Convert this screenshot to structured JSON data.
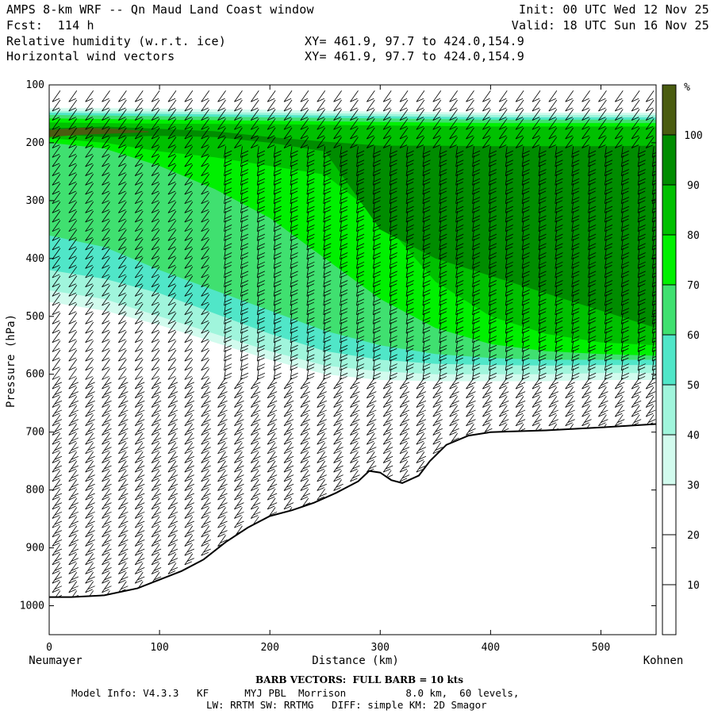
{
  "header": {
    "title": "AMPS 8-km WRF -- Qn Maud Land Coast window",
    "fcst": "Fcst:  114 h",
    "field1": "Relative humidity (w.r.t. ice)",
    "field2": "Horizontal wind vectors",
    "xy1": "XY= 461.9, 97.7 to 424.0,154.9",
    "xy2": "XY= 461.9, 97.7 to 424.0,154.9",
    "init": "Init: 00 UTC Wed 12 Nov 25",
    "valid": "Valid: 18 UTC Sun 16 Nov 25"
  },
  "footer": {
    "barb_note": "BARB VECTORS:  FULL BARB = 10 kts",
    "model_info": "Model Info: V4.3.3   KF      MYJ PBL  Morrison          8.0 km,  60 levels,",
    "model_info2": "LW: RRTM SW: RRTMG   DIFF: simple KM: 2D Smagor"
  },
  "colors": {
    "rh_levels": [
      "#ffffff",
      "#ffffff",
      "#ffffff",
      "#d2fbee",
      "#a0f5dc",
      "#50e6c8",
      "#40e070",
      "#00f000",
      "#00c000",
      "#008c00",
      "#4a5c10"
    ],
    "terrain_line": "#000000"
  },
  "chart_data": {
    "type": "cross-section",
    "title": "Relative humidity (w.r.t. ice) and horizontal wind vectors",
    "xlabel": "Distance (km)",
    "ylabel": "Pressure (hPa)",
    "xlim": [
      0,
      550
    ],
    "ylim": [
      1050,
      100
    ],
    "x_ticks": [
      0,
      100,
      200,
      300,
      400,
      500
    ],
    "y_ticks": [
      100,
      200,
      300,
      400,
      500,
      600,
      700,
      800,
      900,
      1000
    ],
    "left_endpoint": "Neumayer",
    "right_endpoint": "Kohnen",
    "colorbar": {
      "unit": "%",
      "ticks": [
        10,
        20,
        30,
        40,
        50,
        60,
        70,
        80,
        90,
        100
      ],
      "levels": [
        0,
        10,
        20,
        30,
        40,
        50,
        60,
        70,
        80,
        90,
        100,
        110
      ]
    },
    "terrain_surface_hpa": [
      [
        0,
        985
      ],
      [
        20,
        985
      ],
      [
        50,
        982
      ],
      [
        80,
        970
      ],
      [
        100,
        955
      ],
      [
        120,
        940
      ],
      [
        140,
        920
      ],
      [
        160,
        890
      ],
      [
        180,
        865
      ],
      [
        200,
        845
      ],
      [
        220,
        835
      ],
      [
        240,
        822
      ],
      [
        260,
        805
      ],
      [
        280,
        785
      ],
      [
        290,
        767
      ],
      [
        300,
        770
      ],
      [
        310,
        783
      ],
      [
        320,
        788
      ],
      [
        335,
        775
      ],
      [
        345,
        750
      ],
      [
        360,
        722
      ],
      [
        380,
        706
      ],
      [
        400,
        700
      ],
      [
        450,
        697
      ],
      [
        500,
        692
      ],
      [
        550,
        686
      ]
    ],
    "rh_contours": [
      {
        "level": 30,
        "top": [
          [
            0,
            140
          ],
          [
            50,
            140
          ],
          [
            100,
            141
          ],
          [
            200,
            143
          ],
          [
            300,
            146
          ],
          [
            400,
            148
          ],
          [
            550,
            148
          ]
        ],
        "bottom": [
          [
            0,
            475
          ],
          [
            50,
            490
          ],
          [
            100,
            515
          ],
          [
            150,
            545
          ],
          [
            200,
            575
          ],
          [
            250,
            600
          ],
          [
            300,
            610
          ],
          [
            350,
            612
          ],
          [
            400,
            612
          ],
          [
            450,
            612
          ],
          [
            500,
            610
          ],
          [
            550,
            610
          ]
        ]
      },
      {
        "level": 40,
        "top": [
          [
            0,
            145
          ],
          [
            100,
            146
          ],
          [
            200,
            148
          ],
          [
            300,
            150
          ],
          [
            400,
            152
          ],
          [
            550,
            152
          ]
        ],
        "bottom": [
          [
            0,
            455
          ],
          [
            50,
            470
          ],
          [
            100,
            500
          ],
          [
            150,
            530
          ],
          [
            200,
            560
          ],
          [
            250,
            585
          ],
          [
            300,
            595
          ],
          [
            350,
            600
          ],
          [
            400,
            600
          ],
          [
            450,
            600
          ],
          [
            500,
            598
          ],
          [
            550,
            598
          ]
        ]
      },
      {
        "level": 50,
        "top": [
          [
            0,
            148
          ],
          [
            100,
            150
          ],
          [
            200,
            152
          ],
          [
            300,
            154
          ],
          [
            400,
            156
          ],
          [
            550,
            156
          ]
        ],
        "bottom": [
          [
            0,
            420
          ],
          [
            50,
            435
          ],
          [
            100,
            460
          ],
          [
            150,
            495
          ],
          [
            200,
            530
          ],
          [
            250,
            560
          ],
          [
            300,
            575
          ],
          [
            350,
            582
          ],
          [
            400,
            584
          ],
          [
            450,
            585
          ],
          [
            500,
            584
          ],
          [
            550,
            584
          ]
        ]
      },
      {
        "level": 60,
        "top": [
          [
            0,
            152
          ],
          [
            100,
            154
          ],
          [
            200,
            156
          ],
          [
            300,
            158
          ],
          [
            400,
            160
          ],
          [
            550,
            160
          ]
        ],
        "bottom": [
          [
            0,
            360
          ],
          [
            50,
            380
          ],
          [
            100,
            420
          ],
          [
            150,
            455
          ],
          [
            200,
            490
          ],
          [
            250,
            525
          ],
          [
            300,
            550
          ],
          [
            350,
            565
          ],
          [
            400,
            572
          ],
          [
            450,
            575
          ],
          [
            500,
            575
          ],
          [
            550,
            575
          ]
        ]
      },
      {
        "level": 70,
        "top": [
          [
            0,
            158
          ],
          [
            100,
            160
          ],
          [
            200,
            162
          ],
          [
            300,
            164
          ],
          [
            400,
            166
          ],
          [
            550,
            166
          ]
        ],
        "bottom": [
          [
            0,
            200
          ],
          [
            50,
            210
          ],
          [
            100,
            240
          ],
          [
            150,
            280
          ],
          [
            200,
            330
          ],
          [
            250,
            400
          ],
          [
            300,
            470
          ],
          [
            350,
            520
          ],
          [
            400,
            548
          ],
          [
            450,
            560
          ],
          [
            500,
            565
          ],
          [
            550,
            568
          ]
        ]
      },
      {
        "level": 80,
        "top": [
          [
            0,
            165
          ],
          [
            100,
            167
          ],
          [
            200,
            168
          ],
          [
            300,
            170
          ],
          [
            400,
            172
          ],
          [
            550,
            172
          ]
        ],
        "bottom": [
          [
            0,
            192
          ],
          [
            50,
            200
          ],
          [
            100,
            215
          ],
          [
            150,
            225
          ],
          [
            200,
            240
          ],
          [
            250,
            255
          ],
          [
            300,
            330
          ],
          [
            350,
            440
          ],
          [
            400,
            500
          ],
          [
            450,
            530
          ],
          [
            500,
            545
          ],
          [
            550,
            550
          ]
        ]
      },
      {
        "level": 90,
        "top": [
          [
            0,
            175
          ],
          [
            50,
            172
          ],
          [
            100,
            176
          ],
          [
            150,
            180
          ],
          [
            200,
            190
          ],
          [
            250,
            198
          ],
          [
            300,
            205
          ],
          [
            350,
            205
          ],
          [
            400,
            206
          ],
          [
            450,
            206
          ],
          [
            500,
            206
          ],
          [
            550,
            205
          ]
        ],
        "bottom": [
          [
            0,
            185
          ],
          [
            50,
            190
          ],
          [
            100,
            188
          ],
          [
            150,
            190
          ],
          [
            200,
            200
          ],
          [
            250,
            215
          ],
          [
            300,
            350
          ],
          [
            350,
            400
          ],
          [
            400,
            430
          ],
          [
            450,
            460
          ],
          [
            500,
            490
          ],
          [
            550,
            520
          ]
        ]
      },
      {
        "level": 100,
        "top": [
          [
            0,
            178
          ],
          [
            30,
            174
          ],
          [
            60,
            176
          ],
          [
            90,
            180
          ]
        ],
        "bottom": [
          [
            0,
            190
          ],
          [
            30,
            186
          ],
          [
            60,
            184
          ],
          [
            90,
            182
          ]
        ]
      }
    ],
    "wind_profile_columns_km": [
      10,
      25,
      40,
      55,
      70,
      85,
      100,
      115,
      130,
      145,
      160,
      175,
      190,
      205,
      220,
      235,
      250,
      265,
      280,
      295,
      310,
      325,
      340,
      355,
      370,
      385,
      400,
      415,
      430,
      445,
      460,
      475,
      490,
      505,
      520,
      535,
      548
    ]
  }
}
